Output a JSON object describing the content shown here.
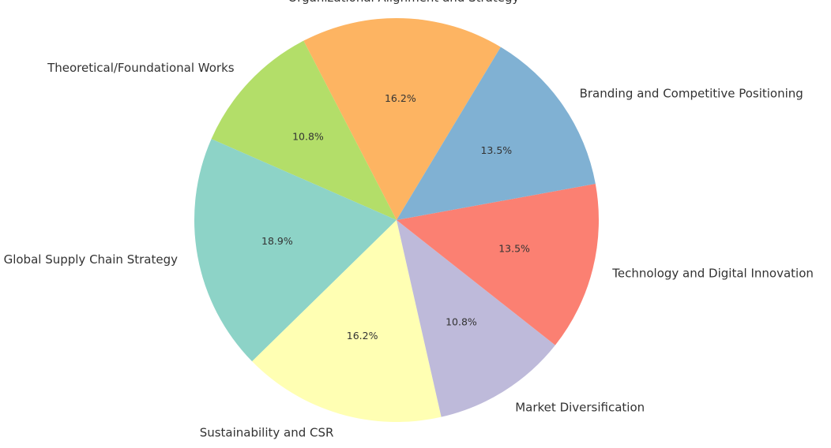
{
  "chart_data": {
    "type": "pie",
    "title": "",
    "slices": [
      {
        "label": "Organizational Alignment and Strategy",
        "value": 16.2,
        "pct_label": "16.2%",
        "color": "#fdb462"
      },
      {
        "label": "Theoretical/Foundational Works",
        "value": 10.8,
        "pct_label": "10.8%",
        "color": "#b3de69"
      },
      {
        "label": "Global Supply Chain Strategy",
        "value": 18.9,
        "pct_label": "18.9%",
        "color": "#8dd3c7"
      },
      {
        "label": "Sustainability and CSR",
        "value": 16.2,
        "pct_label": "16.2%",
        "color": "#ffffb3"
      },
      {
        "label": "Market Diversification",
        "value": 10.8,
        "pct_label": "10.8%",
        "color": "#bebada"
      },
      {
        "label": "Technology and Digital Innovation",
        "value": 13.5,
        "pct_label": "13.5%",
        "color": "#fb8072"
      },
      {
        "label": "Branding and Competitive Positioning",
        "value": 13.5,
        "pct_label": "13.5%",
        "color": "#80b1d3"
      }
    ]
  }
}
